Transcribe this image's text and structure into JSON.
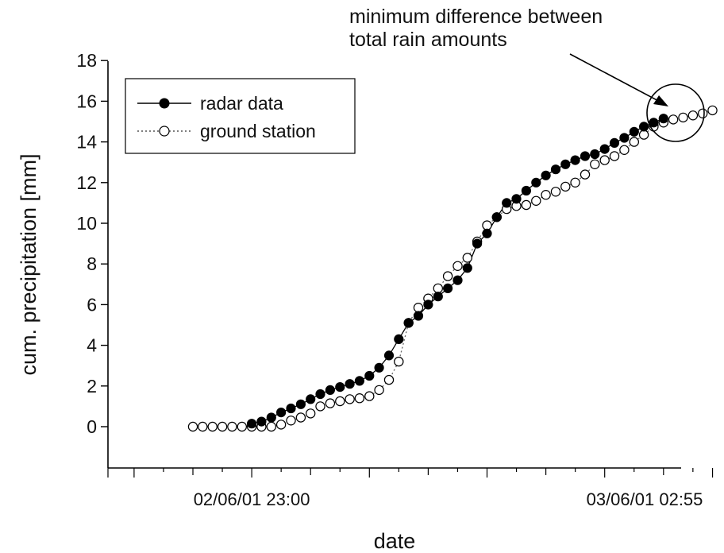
{
  "chart_data": {
    "type": "line",
    "title": "",
    "xlabel": "date",
    "ylabel": "cum. precipitation [mm]",
    "ylim": [
      -2,
      18
    ],
    "y_ticks": [
      0,
      2,
      4,
      6,
      8,
      10,
      12,
      14,
      16,
      18
    ],
    "x_tick_labels": [
      {
        "label": "02/06/01 23:00",
        "index": 6
      },
      {
        "label": "03/06/01 02:55",
        "index": 53
      }
    ],
    "x_time_step": "5 min",
    "grid": false,
    "legend_position": "top-left",
    "annotation": {
      "text_line1": "minimum difference between",
      "text_line2": "total rain amounts"
    },
    "series": [
      {
        "name": "radar data",
        "marker": "filled-circle",
        "line_style": "solid",
        "color": "#000000",
        "start_index": 6,
        "values": [
          0.15,
          0.25,
          0.45,
          0.7,
          0.9,
          1.1,
          1.35,
          1.6,
          1.8,
          1.95,
          2.1,
          2.25,
          2.5,
          2.9,
          3.5,
          4.3,
          5.1,
          5.45,
          6.0,
          6.4,
          6.8,
          7.2,
          7.8,
          9.0,
          9.5,
          10.3,
          11.0,
          11.2,
          11.6,
          12.0,
          12.35,
          12.65,
          12.9,
          13.1,
          13.3,
          13.4,
          13.65,
          13.95,
          14.2,
          14.5,
          14.75,
          14.95,
          15.15
        ]
      },
      {
        "name": "ground station",
        "marker": "open-circle",
        "line_style": "dotted",
        "color": "#000000",
        "start_index": 0,
        "values": [
          0,
          0,
          0,
          0,
          0,
          0,
          0,
          0,
          0,
          0.1,
          0.3,
          0.45,
          0.65,
          1.0,
          1.15,
          1.25,
          1.35,
          1.4,
          1.5,
          1.8,
          2.3,
          3.2,
          5.1,
          5.85,
          6.3,
          6.8,
          7.4,
          7.9,
          8.3,
          9.1,
          9.9,
          10.3,
          10.7,
          10.85,
          10.9,
          11.1,
          11.4,
          11.55,
          11.8,
          12.0,
          12.4,
          12.9,
          13.1,
          13.3,
          13.6,
          14.0,
          14.35,
          14.75,
          14.95,
          15.1,
          15.2,
          15.3,
          15.4,
          15.55
        ]
      }
    ]
  }
}
